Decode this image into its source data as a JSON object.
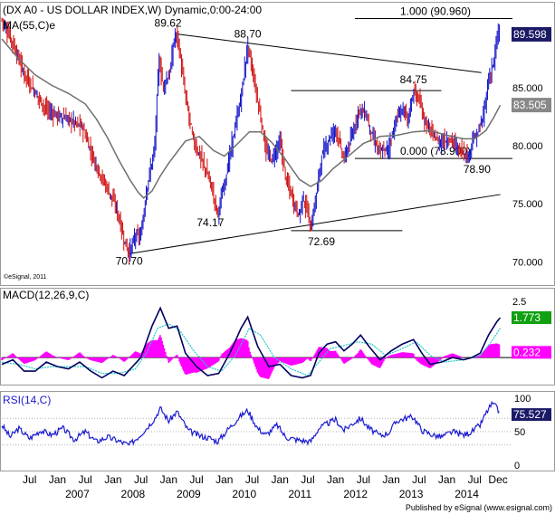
{
  "chart_data": [
    {
      "type": "line",
      "title": "(DX A0 - US DOLLAR INDEX,W) Dynamic,0:00-24:00",
      "series": [
        {
          "name": "MA(55,C)e"
        }
      ],
      "ylim": [
        68.0,
        92.4
      ],
      "yticks": [
        "70.000",
        "75.000",
        "80.000",
        "85.000"
      ],
      "price_points": [
        [
          2006.0,
          90.9
        ],
        [
          2006.2,
          88.8
        ],
        [
          2006.4,
          86.2
        ],
        [
          2006.6,
          84.6
        ],
        [
          2006.8,
          83.1
        ],
        [
          2007.0,
          82.6
        ],
        [
          2007.2,
          82.3
        ],
        [
          2007.45,
          81.6
        ],
        [
          2007.6,
          79.5
        ],
        [
          2007.75,
          77.7
        ],
        [
          2007.9,
          76.3
        ],
        [
          2008.05,
          74.8
        ],
        [
          2008.2,
          71.8
        ],
        [
          2008.29,
          70.7
        ],
        [
          2008.4,
          72.3
        ],
        [
          2008.5,
          72.2
        ],
        [
          2008.6,
          76.2
        ],
        [
          2008.75,
          80.0
        ],
        [
          2008.82,
          87.4
        ],
        [
          2008.9,
          85.2
        ],
        [
          2009.02,
          86.2
        ],
        [
          2009.1,
          89.3
        ],
        [
          2009.15,
          89.62
        ],
        [
          2009.3,
          84.3
        ],
        [
          2009.45,
          80.3
        ],
        [
          2009.6,
          78.7
        ],
        [
          2009.75,
          76.8
        ],
        [
          2009.88,
          74.17
        ],
        [
          2009.98,
          76.2
        ],
        [
          2010.15,
          80.5
        ],
        [
          2010.3,
          84.2
        ],
        [
          2010.42,
          88.7
        ],
        [
          2010.55,
          85.2
        ],
        [
          2010.65,
          82.5
        ],
        [
          2010.75,
          79.5
        ],
        [
          2010.85,
          78.8
        ],
        [
          2011.0,
          80.4
        ],
        [
          2011.1,
          77.3
        ],
        [
          2011.25,
          75.1
        ],
        [
          2011.35,
          73.9
        ],
        [
          2011.4,
          75.6
        ],
        [
          2011.5,
          74.3
        ],
        [
          2011.55,
          72.69
        ],
        [
          2011.62,
          74.8
        ],
        [
          2011.75,
          79.1
        ],
        [
          2011.9,
          80.8
        ],
        [
          2012.0,
          81.5
        ],
        [
          2012.15,
          78.8
        ],
        [
          2012.3,
          80.9
        ],
        [
          2012.42,
          83.2
        ],
        [
          2012.55,
          82.7
        ],
        [
          2012.65,
          80.9
        ],
        [
          2012.8,
          79.4
        ],
        [
          2012.95,
          79.8
        ],
        [
          2013.1,
          82.4
        ],
        [
          2013.2,
          83.2
        ],
        [
          2013.3,
          82.3
        ],
        [
          2013.4,
          84.75
        ],
        [
          2013.5,
          83.9
        ],
        [
          2013.6,
          82.1
        ],
        [
          2013.7,
          81.3
        ],
        [
          2013.85,
          80.3
        ],
        [
          2014.0,
          80.5
        ],
        [
          2014.1,
          80.5
        ],
        [
          2014.2,
          79.7
        ],
        [
          2014.3,
          79.5
        ],
        [
          2014.38,
          78.9
        ],
        [
          2014.45,
          80.4
        ],
        [
          2014.55,
          81.0
        ],
        [
          2014.65,
          82.4
        ],
        [
          2014.75,
          85.7
        ],
        [
          2014.85,
          87.4
        ],
        [
          2014.93,
          90.0
        ],
        [
          2014.96,
          89.6
        ]
      ],
      "ma_points": [
        [
          2006.0,
          89.2
        ],
        [
          2006.3,
          87.5
        ],
        [
          2006.6,
          86.1
        ],
        [
          2006.9,
          85.2
        ],
        [
          2007.2,
          84.5
        ],
        [
          2007.5,
          83.6
        ],
        [
          2007.7,
          82.3
        ],
        [
          2007.9,
          80.7
        ],
        [
          2008.1,
          78.8
        ],
        [
          2008.3,
          77.1
        ],
        [
          2008.45,
          76.0
        ],
        [
          2008.55,
          75.5
        ],
        [
          2008.7,
          76.1
        ],
        [
          2008.85,
          77.4
        ],
        [
          2009.0,
          78.5
        ],
        [
          2009.3,
          80.4
        ],
        [
          2009.55,
          80.8
        ],
        [
          2009.8,
          79.6
        ],
        [
          2010.0,
          79.1
        ],
        [
          2010.2,
          80.0
        ],
        [
          2010.45,
          81.2
        ],
        [
          2010.65,
          81.2
        ],
        [
          2010.85,
          80.3
        ],
        [
          2011.1,
          78.8
        ],
        [
          2011.35,
          77.1
        ],
        [
          2011.55,
          76.5
        ],
        [
          2011.75,
          77.0
        ],
        [
          2011.95,
          78.0
        ],
        [
          2012.2,
          79.0
        ],
        [
          2012.5,
          80.2
        ],
        [
          2012.8,
          80.8
        ],
        [
          2013.1,
          80.9
        ],
        [
          2013.4,
          81.2
        ],
        [
          2013.7,
          81.3
        ],
        [
          2014.0,
          80.9
        ],
        [
          2014.3,
          80.6
        ],
        [
          2014.5,
          80.6
        ],
        [
          2014.7,
          81.3
        ],
        [
          2014.85,
          82.5
        ],
        [
          2014.96,
          83.5
        ]
      ],
      "last_values": {
        "price": "89.598",
        "ma": "83.505"
      },
      "annotations": [
        {
          "text": "89.62",
          "x": 2009.15,
          "y": 89.62
        },
        {
          "text": "88.70",
          "x": 2010.42,
          "y": 88.7
        },
        {
          "text": "84.75",
          "x": 2013.4,
          "y": 84.75
        },
        {
          "text": "74.17",
          "x": 2009.88,
          "y": 74.17
        },
        {
          "text": "72.69",
          "x": 2011.55,
          "y": 72.69
        },
        {
          "text": "70.70",
          "x": 2008.29,
          "y": 70.7
        },
        {
          "text": "78.90",
          "x": 2014.38,
          "y": 78.9
        }
      ],
      "fib_levels": [
        {
          "label": "1.000 (90.960)",
          "value": 90.96
        },
        {
          "label": "0.000 (78.900)",
          "value": 78.9
        }
      ],
      "trendlines": [
        {
          "from": [
            2009.15,
            89.62
          ],
          "to": [
            2014.62,
            86.3
          ]
        },
        {
          "from": [
            2008.29,
            70.7
          ],
          "to": [
            2014.96,
            75.8
          ]
        }
      ],
      "horizontal_segments": [
        {
          "value": 84.75,
          "from": 2011.2,
          "to": 2013.9
        },
        {
          "value": 72.69,
          "from": 2011.2,
          "to": 2013.2
        }
      ],
      "watermark": "©eSignal, 2011",
      "grid": false
    },
    {
      "type": "line",
      "title": "MACD(12,26,9,C)",
      "ylim": [
        -1.2,
        3.1
      ],
      "yticks": [
        "2.5"
      ],
      "macd_points": [
        [
          2006.0,
          -0.3
        ],
        [
          2006.2,
          -0.1
        ],
        [
          2006.4,
          -0.6
        ],
        [
          2006.6,
          -0.6
        ],
        [
          2006.8,
          -0.2
        ],
        [
          2007.0,
          -0.4
        ],
        [
          2007.2,
          -0.5
        ],
        [
          2007.4,
          -0.2
        ],
        [
          2007.6,
          -0.6
        ],
        [
          2007.8,
          -0.9
        ],
        [
          2008.0,
          -0.6
        ],
        [
          2008.2,
          -0.8
        ],
        [
          2008.35,
          -0.4
        ],
        [
          2008.5,
          0.0
        ],
        [
          2008.7,
          1.4
        ],
        [
          2008.85,
          2.2
        ],
        [
          2009.0,
          1.3
        ],
        [
          2009.15,
          1.4
        ],
        [
          2009.3,
          0.2
        ],
        [
          2009.5,
          -0.4
        ],
        [
          2009.7,
          -0.8
        ],
        [
          2009.9,
          -0.7
        ],
        [
          2010.1,
          0.2
        ],
        [
          2010.3,
          1.3
        ],
        [
          2010.42,
          1.8
        ],
        [
          2010.6,
          0.5
        ],
        [
          2010.8,
          -0.4
        ],
        [
          2011.0,
          -0.3
        ],
        [
          2011.2,
          -0.8
        ],
        [
          2011.4,
          -0.9
        ],
        [
          2011.55,
          -0.8
        ],
        [
          2011.7,
          0.2
        ],
        [
          2011.85,
          0.6
        ],
        [
          2012.0,
          0.7
        ],
        [
          2012.15,
          0.3
        ],
        [
          2012.3,
          0.6
        ],
        [
          2012.45,
          1.0
        ],
        [
          2012.6,
          0.5
        ],
        [
          2012.8,
          -0.1
        ],
        [
          2013.0,
          0.3
        ],
        [
          2013.2,
          0.6
        ],
        [
          2013.4,
          0.8
        ],
        [
          2013.55,
          0.2
        ],
        [
          2013.7,
          -0.3
        ],
        [
          2013.9,
          -0.2
        ],
        [
          2014.1,
          0.0
        ],
        [
          2014.3,
          -0.1
        ],
        [
          2014.45,
          0.0
        ],
        [
          2014.6,
          0.2
        ],
        [
          2014.75,
          1.0
        ],
        [
          2014.9,
          1.6
        ],
        [
          2014.96,
          1.77
        ]
      ],
      "signal_points": [
        [
          2006.0,
          -0.2
        ],
        [
          2006.3,
          -0.3
        ],
        [
          2006.6,
          -0.5
        ],
        [
          2006.9,
          -0.4
        ],
        [
          2007.2,
          -0.4
        ],
        [
          2007.5,
          -0.4
        ],
        [
          2007.8,
          -0.7
        ],
        [
          2008.1,
          -0.7
        ],
        [
          2008.4,
          -0.5
        ],
        [
          2008.6,
          0.2
        ],
        [
          2008.8,
          1.3
        ],
        [
          2009.0,
          1.5
        ],
        [
          2009.2,
          1.2
        ],
        [
          2009.45,
          0.3
        ],
        [
          2009.7,
          -0.4
        ],
        [
          2009.95,
          -0.6
        ],
        [
          2010.2,
          0.1
        ],
        [
          2010.45,
          1.3
        ],
        [
          2010.65,
          1.0
        ],
        [
          2010.9,
          0.0
        ],
        [
          2011.2,
          -0.5
        ],
        [
          2011.5,
          -0.8
        ],
        [
          2011.7,
          -0.2
        ],
        [
          2011.9,
          0.4
        ],
        [
          2012.1,
          0.5
        ],
        [
          2012.4,
          0.7
        ],
        [
          2012.65,
          0.6
        ],
        [
          2012.9,
          0.1
        ],
        [
          2013.2,
          0.4
        ],
        [
          2013.45,
          0.7
        ],
        [
          2013.7,
          0.1
        ],
        [
          2013.95,
          -0.2
        ],
        [
          2014.3,
          -0.1
        ],
        [
          2014.6,
          0.1
        ],
        [
          2014.8,
          0.7
        ],
        [
          2014.96,
          1.3
        ]
      ],
      "last_values": {
        "macd": "1.773",
        "hist": "0.232"
      },
      "grid": false
    },
    {
      "type": "line",
      "title": "RSI(14,C)",
      "ylim": [
        0,
        100
      ],
      "yticks": [
        "100",
        "50",
        "0"
      ],
      "rsi_points": [
        [
          2006.0,
          60
        ],
        [
          2006.15,
          42
        ],
        [
          2006.3,
          55
        ],
        [
          2006.5,
          40
        ],
        [
          2006.7,
          52
        ],
        [
          2006.9,
          45
        ],
        [
          2007.1,
          55
        ],
        [
          2007.3,
          38
        ],
        [
          2007.5,
          50
        ],
        [
          2007.7,
          35
        ],
        [
          2007.9,
          42
        ],
        [
          2008.1,
          36
        ],
        [
          2008.29,
          30
        ],
        [
          2008.45,
          42
        ],
        [
          2008.6,
          55
        ],
        [
          2008.75,
          70
        ],
        [
          2008.85,
          85
        ],
        [
          2009.0,
          66
        ],
        [
          2009.15,
          80
        ],
        [
          2009.35,
          52
        ],
        [
          2009.55,
          44
        ],
        [
          2009.75,
          40
        ],
        [
          2009.88,
          35
        ],
        [
          2010.05,
          52
        ],
        [
          2010.25,
          70
        ],
        [
          2010.42,
          82
        ],
        [
          2010.6,
          55
        ],
        [
          2010.75,
          45
        ],
        [
          2010.95,
          60
        ],
        [
          2011.1,
          42
        ],
        [
          2011.3,
          38
        ],
        [
          2011.55,
          35
        ],
        [
          2011.7,
          55
        ],
        [
          2011.85,
          62
        ],
        [
          2012.0,
          68
        ],
        [
          2012.15,
          52
        ],
        [
          2012.3,
          62
        ],
        [
          2012.45,
          70
        ],
        [
          2012.6,
          55
        ],
        [
          2012.8,
          44
        ],
        [
          2012.95,
          48
        ],
        [
          2013.1,
          66
        ],
        [
          2013.25,
          70
        ],
        [
          2013.4,
          72
        ],
        [
          2013.55,
          52
        ],
        [
          2013.75,
          45
        ],
        [
          2013.9,
          42
        ],
        [
          2014.1,
          50
        ],
        [
          2014.3,
          45
        ],
        [
          2014.45,
          50
        ],
        [
          2014.6,
          60
        ],
        [
          2014.72,
          80
        ],
        [
          2014.82,
          92
        ],
        [
          2014.9,
          85
        ],
        [
          2014.96,
          75.527
        ]
      ],
      "last_values": {
        "rsi": "75.527"
      },
      "grid": false
    }
  ],
  "x_axis": {
    "month_labels": [
      "Jul",
      "Jan",
      "Jul",
      "Jan",
      "Jul",
      "Jan",
      "Jul",
      "Jan",
      "Jul",
      "Jan",
      "Jul",
      "Jan",
      "Jul",
      "Jan",
      "Jul",
      "Jan",
      "Jul",
      "Dec"
    ],
    "year_labels": [
      "2007",
      "2008",
      "2009",
      "2010",
      "2011",
      "2012",
      "2013",
      "2014"
    ]
  },
  "footer": "Published by eSignal (www.esignal.com)",
  "colors": {
    "up": "#1010c8",
    "down": "#d01010",
    "ma": "#707070",
    "macd": "#000060",
    "signal": "#20c8c8",
    "hist": "#ff00ff",
    "rsi": "#1a1ad0",
    "label_bg": "#1a1a66",
    "macd_label_bg": "#10a010"
  }
}
